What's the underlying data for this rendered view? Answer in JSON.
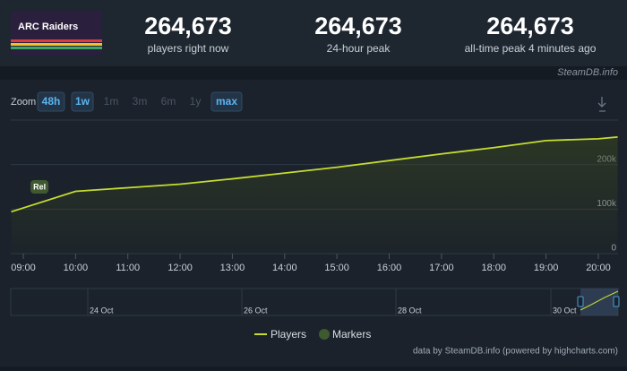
{
  "header": {
    "logo_text": "ARC Raiders",
    "stats": [
      {
        "value": "264,673",
        "label": "players right now"
      },
      {
        "value": "264,673",
        "label": "24-hour peak"
      },
      {
        "value": "264,673",
        "label": "all-time peak 4 minutes ago"
      }
    ],
    "source": "SteamDB.info"
  },
  "zoom": {
    "label": "Zoom",
    "buttons": [
      "48h",
      "1w",
      "1m",
      "3m",
      "6m",
      "1y",
      "max"
    ],
    "active": [
      true,
      true,
      false,
      false,
      false,
      false,
      true
    ]
  },
  "chart_data": {
    "type": "line",
    "x": [
      8.77,
      10,
      11,
      12,
      13,
      14,
      15,
      16,
      17,
      18,
      19,
      20,
      20.37
    ],
    "series": [
      {
        "name": "Players",
        "color": "#c5dc2f",
        "values": [
          94000,
          140000,
          148000,
          156000,
          168000,
          181000,
          194000,
          209000,
          224000,
          238000,
          254000,
          258000,
          262000
        ]
      }
    ],
    "markers": {
      "name": "Markers",
      "color": "#3f5a30",
      "items": [
        {
          "x": 9.31,
          "label": "Rel"
        }
      ]
    },
    "xlim": [
      8.77,
      20.37
    ],
    "xticks": [
      {
        "value": 9,
        "label": "09:00"
      },
      {
        "value": 10,
        "label": "10:00"
      },
      {
        "value": 11,
        "label": "11:00"
      },
      {
        "value": 12,
        "label": "12:00"
      },
      {
        "value": 13,
        "label": "13:00"
      },
      {
        "value": 14,
        "label": "14:00"
      },
      {
        "value": 15,
        "label": "15:00"
      },
      {
        "value": 16,
        "label": "16:00"
      },
      {
        "value": 17,
        "label": "17:00"
      },
      {
        "value": 18,
        "label": "18:00"
      },
      {
        "value": 19,
        "label": "19:00"
      },
      {
        "value": 20,
        "label": "20:00"
      }
    ],
    "ylim": [
      0,
      300000
    ],
    "yticks": [
      {
        "value": 0,
        "label": "0"
      },
      {
        "value": 100000,
        "label": "100k"
      },
      {
        "value": 200000,
        "label": "200k"
      },
      {
        "value": 300000,
        "label": ""
      }
    ],
    "grid": true
  },
  "navigator": {
    "labels": [
      "24 Oct",
      "26 Oct",
      "28 Oct",
      "30 Oct"
    ]
  },
  "credit": "data by SteamDB.info (powered by highcharts.com)"
}
